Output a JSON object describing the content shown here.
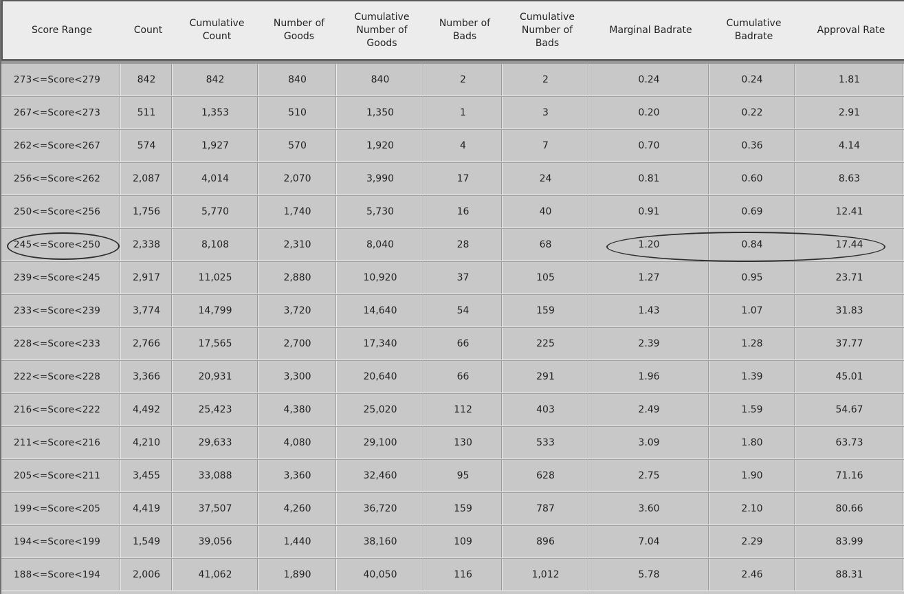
{
  "table": {
    "columns": [
      {
        "key": "range",
        "label": "Score Range"
      },
      {
        "key": "count",
        "label": "Count"
      },
      {
        "key": "cum_count",
        "label": "Cumulative\nCount"
      },
      {
        "key": "goods",
        "label": "Number of\nGoods"
      },
      {
        "key": "cum_goods",
        "label": "Cumulative\nNumber of\nGoods"
      },
      {
        "key": "bads",
        "label": "Number of\nBads"
      },
      {
        "key": "cum_bads",
        "label": "Cumulative\nNumber of\nBads"
      },
      {
        "key": "marginal_badrate",
        "label": "Marginal Badrate"
      },
      {
        "key": "cum_badrate",
        "label": "Cumulative\nBadrate"
      },
      {
        "key": "approval_rate",
        "label": "Approval Rate"
      }
    ],
    "rows": [
      [
        "273<=Score<279",
        "842",
        "842",
        "840",
        "840",
        "2",
        "2",
        "0.24",
        "0.24",
        "1.81"
      ],
      [
        "267<=Score<273",
        "511",
        "1,353",
        "510",
        "1,350",
        "1",
        "3",
        "0.20",
        "0.22",
        "2.91"
      ],
      [
        "262<=Score<267",
        "574",
        "1,927",
        "570",
        "1,920",
        "4",
        "7",
        "0.70",
        "0.36",
        "4.14"
      ],
      [
        "256<=Score<262",
        "2,087",
        "4,014",
        "2,070",
        "3,990",
        "17",
        "24",
        "0.81",
        "0.60",
        "8.63"
      ],
      [
        "250<=Score<256",
        "1,756",
        "5,770",
        "1,740",
        "5,730",
        "16",
        "40",
        "0.91",
        "0.69",
        "12.41"
      ],
      [
        "245<=Score<250",
        "2,338",
        "8,108",
        "2,310",
        "8,040",
        "28",
        "68",
        "1.20",
        "0.84",
        "17.44"
      ],
      [
        "239<=Score<245",
        "2,917",
        "11,025",
        "2,880",
        "10,920",
        "37",
        "105",
        "1.27",
        "0.95",
        "23.71"
      ],
      [
        "233<=Score<239",
        "3,774",
        "14,799",
        "3,720",
        "14,640",
        "54",
        "159",
        "1.43",
        "1.07",
        "31.83"
      ],
      [
        "228<=Score<233",
        "2,766",
        "17,565",
        "2,700",
        "17,340",
        "66",
        "225",
        "2.39",
        "1.28",
        "37.77"
      ],
      [
        "222<=Score<228",
        "3,366",
        "20,931",
        "3,300",
        "20,640",
        "66",
        "291",
        "1.96",
        "1.39",
        "45.01"
      ],
      [
        "216<=Score<222",
        "4,492",
        "25,423",
        "4,380",
        "25,020",
        "112",
        "403",
        "2.49",
        "1.59",
        "54.67"
      ],
      [
        "211<=Score<216",
        "4,210",
        "29,633",
        "4,080",
        "29,100",
        "130",
        "533",
        "3.09",
        "1.80",
        "63.73"
      ],
      [
        "205<=Score<211",
        "3,455",
        "33,088",
        "3,360",
        "32,460",
        "95",
        "628",
        "2.75",
        "1.90",
        "71.16"
      ],
      [
        "199<=Score<205",
        "4,419",
        "37,507",
        "4,260",
        "36,720",
        "159",
        "787",
        "3.60",
        "2.10",
        "80.66"
      ],
      [
        "194<=Score<199",
        "1,549",
        "39,056",
        "1,440",
        "38,160",
        "109",
        "896",
        "7.04",
        "2.29",
        "83.99"
      ],
      [
        "188<=Score<194",
        "2,006",
        "41,062",
        "1,890",
        "40,050",
        "116",
        "1,012",
        "5.78",
        "2.46",
        "88.31"
      ]
    ],
    "highlighted_row_index": 5
  },
  "colors": {
    "header_bg": "#ececec",
    "cell_bg": "#c8c8c8",
    "ellipse_stroke": "#2e2e2e"
  }
}
